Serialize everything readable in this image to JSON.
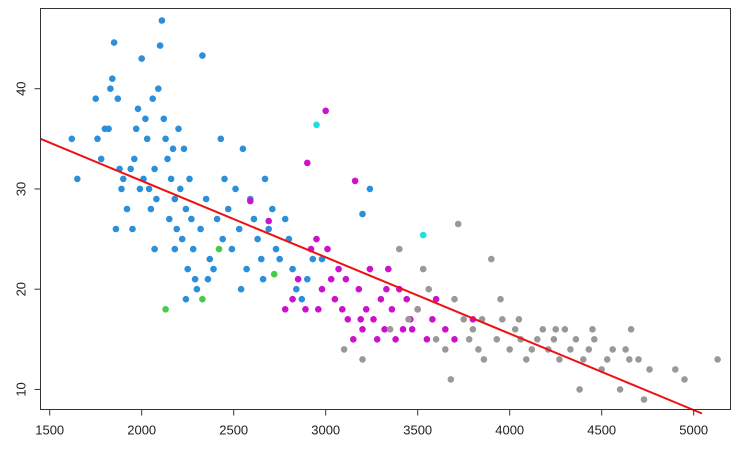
{
  "chart_data": {
    "type": "scatter",
    "title": "",
    "xlabel": "",
    "ylabel": "",
    "xlim": [
      1450,
      5200
    ],
    "ylim": [
      8,
      48
    ],
    "xticks": [
      1500,
      2000,
      2500,
      3000,
      3500,
      4000,
      4500,
      5000
    ],
    "yticks": [
      10,
      20,
      30,
      40
    ],
    "xtick_labels": [
      "1500",
      "2000",
      "2500",
      "3000",
      "3500",
      "4000",
      "4500",
      "5000"
    ],
    "ytick_labels": [
      "10",
      "20",
      "30",
      "40"
    ],
    "grid": false,
    "legend": "none",
    "series": [
      {
        "color": "#2b8fd9",
        "points": [
          [
            1620,
            35
          ],
          [
            1650,
            31
          ],
          [
            1750,
            39
          ],
          [
            1760,
            35
          ],
          [
            1780,
            33
          ],
          [
            1800,
            36
          ],
          [
            1820,
            36
          ],
          [
            1830,
            40
          ],
          [
            1840,
            41
          ],
          [
            1850,
            44.6
          ],
          [
            1870,
            39
          ],
          [
            1880,
            32
          ],
          [
            1900,
            31
          ],
          [
            1920,
            28
          ],
          [
            1940,
            32
          ],
          [
            1960,
            33
          ],
          [
            1970,
            36
          ],
          [
            1980,
            38
          ],
          [
            1990,
            30
          ],
          [
            2000,
            43
          ],
          [
            2010,
            31
          ],
          [
            2020,
            37
          ],
          [
            2030,
            35
          ],
          [
            2040,
            30
          ],
          [
            2050,
            28
          ],
          [
            2060,
            39
          ],
          [
            2070,
            32
          ],
          [
            2080,
            29
          ],
          [
            2090,
            40
          ],
          [
            2100,
            44.3
          ],
          [
            2110,
            46.8
          ],
          [
            2120,
            37
          ],
          [
            2130,
            35
          ],
          [
            2140,
            33
          ],
          [
            2150,
            27
          ],
          [
            2160,
            31
          ],
          [
            2170,
            34
          ],
          [
            2180,
            29
          ],
          [
            2190,
            26
          ],
          [
            2200,
            36
          ],
          [
            2210,
            30
          ],
          [
            2220,
            25
          ],
          [
            2230,
            34
          ],
          [
            2240,
            28
          ],
          [
            2250,
            22
          ],
          [
            2260,
            31
          ],
          [
            2270,
            27
          ],
          [
            2280,
            24
          ],
          [
            2290,
            21
          ],
          [
            2300,
            20
          ],
          [
            2320,
            26
          ],
          [
            2330,
            43.3
          ],
          [
            2350,
            29
          ],
          [
            2370,
            23
          ],
          [
            2390,
            22
          ],
          [
            2410,
            27
          ],
          [
            2430,
            35
          ],
          [
            2450,
            31
          ],
          [
            2470,
            28
          ],
          [
            2490,
            24
          ],
          [
            2510,
            30
          ],
          [
            2530,
            26
          ],
          [
            2550,
            34
          ],
          [
            2570,
            22
          ],
          [
            2590,
            29
          ],
          [
            2610,
            27
          ],
          [
            2630,
            25
          ],
          [
            2650,
            23
          ],
          [
            2670,
            31
          ],
          [
            2690,
            26
          ],
          [
            2710,
            28
          ],
          [
            2730,
            24
          ],
          [
            2750,
            23
          ],
          [
            2780,
            27
          ],
          [
            2800,
            25
          ],
          [
            2820,
            22
          ],
          [
            2840,
            20
          ],
          [
            2870,
            19
          ],
          [
            2900,
            21
          ],
          [
            2930,
            23
          ],
          [
            1860,
            26
          ],
          [
            1890,
            30
          ],
          [
            1950,
            26
          ],
          [
            2070,
            24
          ],
          [
            2180,
            24
          ],
          [
            2240,
            19
          ],
          [
            2360,
            21
          ],
          [
            2440,
            25
          ],
          [
            2540,
            20
          ],
          [
            2660,
            21
          ],
          [
            3200,
            27.5
          ],
          [
            3240,
            30
          ],
          [
            2980,
            23
          ]
        ]
      },
      {
        "color": "#cc11cc",
        "points": [
          [
            2590,
            28.8
          ],
          [
            2690,
            26.8
          ],
          [
            2780,
            18
          ],
          [
            2820,
            19
          ],
          [
            2850,
            21
          ],
          [
            2900,
            32.6
          ],
          [
            2920,
            24
          ],
          [
            2950,
            25
          ],
          [
            2960,
            18
          ],
          [
            2980,
            20
          ],
          [
            3000,
            37.8
          ],
          [
            3010,
            24
          ],
          [
            3030,
            21
          ],
          [
            3050,
            19
          ],
          [
            3070,
            22
          ],
          [
            3090,
            18
          ],
          [
            3120,
            17
          ],
          [
            3150,
            15
          ],
          [
            3160,
            30.8
          ],
          [
            3180,
            20
          ],
          [
            3200,
            16
          ],
          [
            3220,
            18
          ],
          [
            3240,
            22
          ],
          [
            3260,
            17
          ],
          [
            3280,
            15
          ],
          [
            3300,
            19
          ],
          [
            3320,
            16
          ],
          [
            3340,
            22
          ],
          [
            3360,
            18
          ],
          [
            3380,
            15
          ],
          [
            3400,
            20
          ],
          [
            3420,
            16
          ],
          [
            3440,
            19
          ],
          [
            3460,
            17
          ],
          [
            3500,
            18
          ],
          [
            3550,
            15
          ],
          [
            3600,
            19
          ],
          [
            3650,
            16
          ],
          [
            3700,
            15
          ],
          [
            3800,
            17
          ],
          [
            2890,
            18
          ],
          [
            3110,
            21
          ],
          [
            3190,
            17
          ],
          [
            3330,
            20
          ],
          [
            3470,
            16
          ],
          [
            3580,
            17
          ]
        ]
      },
      {
        "color": "#999999",
        "points": [
          [
            3100,
            14
          ],
          [
            3200,
            13
          ],
          [
            3350,
            16
          ],
          [
            3450,
            17
          ],
          [
            3500,
            18
          ],
          [
            3530,
            22
          ],
          [
            3560,
            20
          ],
          [
            3600,
            15
          ],
          [
            3650,
            14
          ],
          [
            3680,
            11
          ],
          [
            3720,
            26.5
          ],
          [
            3750,
            17
          ],
          [
            3780,
            15
          ],
          [
            3800,
            16
          ],
          [
            3830,
            14
          ],
          [
            3860,
            13
          ],
          [
            3900,
            23
          ],
          [
            3930,
            15
          ],
          [
            3960,
            17
          ],
          [
            4000,
            14
          ],
          [
            4030,
            16
          ],
          [
            4060,
            15
          ],
          [
            4090,
            13
          ],
          [
            4120,
            14
          ],
          [
            4150,
            15
          ],
          [
            4180,
            16
          ],
          [
            4210,
            14
          ],
          [
            4240,
            15
          ],
          [
            4270,
            13
          ],
          [
            4300,
            16
          ],
          [
            4330,
            14
          ],
          [
            4360,
            15
          ],
          [
            4380,
            10
          ],
          [
            4400,
            13
          ],
          [
            4430,
            14
          ],
          [
            4460,
            15
          ],
          [
            4500,
            12
          ],
          [
            4530,
            13
          ],
          [
            4560,
            14
          ],
          [
            4600,
            10
          ],
          [
            4630,
            14
          ],
          [
            4660,
            16
          ],
          [
            4700,
            13
          ],
          [
            4730,
            9
          ],
          [
            4760,
            12
          ],
          [
            4900,
            12
          ],
          [
            4950,
            11
          ],
          [
            5130,
            13
          ],
          [
            3400,
            24
          ],
          [
            3700,
            19
          ],
          [
            3850,
            17
          ],
          [
            3950,
            19
          ],
          [
            4050,
            17
          ],
          [
            4250,
            16
          ],
          [
            4450,
            16
          ],
          [
            4650,
            13
          ]
        ]
      },
      {
        "color": "#44cc44",
        "points": [
          [
            2130,
            18
          ],
          [
            2330,
            19
          ],
          [
            2420,
            24
          ],
          [
            2720,
            21.5
          ]
        ]
      },
      {
        "color": "#22dddd",
        "points": [
          [
            2950,
            36.4
          ],
          [
            3530,
            25.4
          ]
        ]
      }
    ],
    "fit_line": {
      "color": "#ee1111",
      "x": [
        1450,
        5045
      ],
      "y": [
        35,
        7.6
      ]
    }
  }
}
